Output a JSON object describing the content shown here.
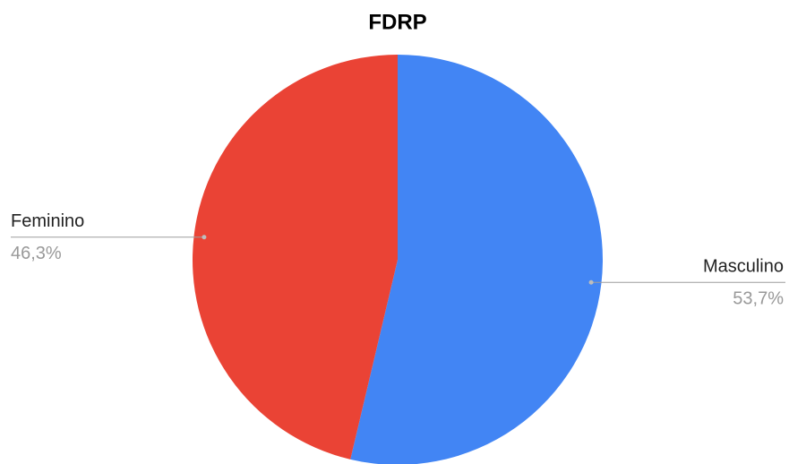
{
  "chart_data": {
    "type": "pie",
    "title": "FDRP",
    "categories": [
      "Masculino",
      "Feminino"
    ],
    "values": [
      53.7,
      46.3
    ],
    "value_labels": [
      "53,7%",
      "46,3%"
    ],
    "colors": [
      "#4285f4",
      "#ea4335"
    ]
  }
}
